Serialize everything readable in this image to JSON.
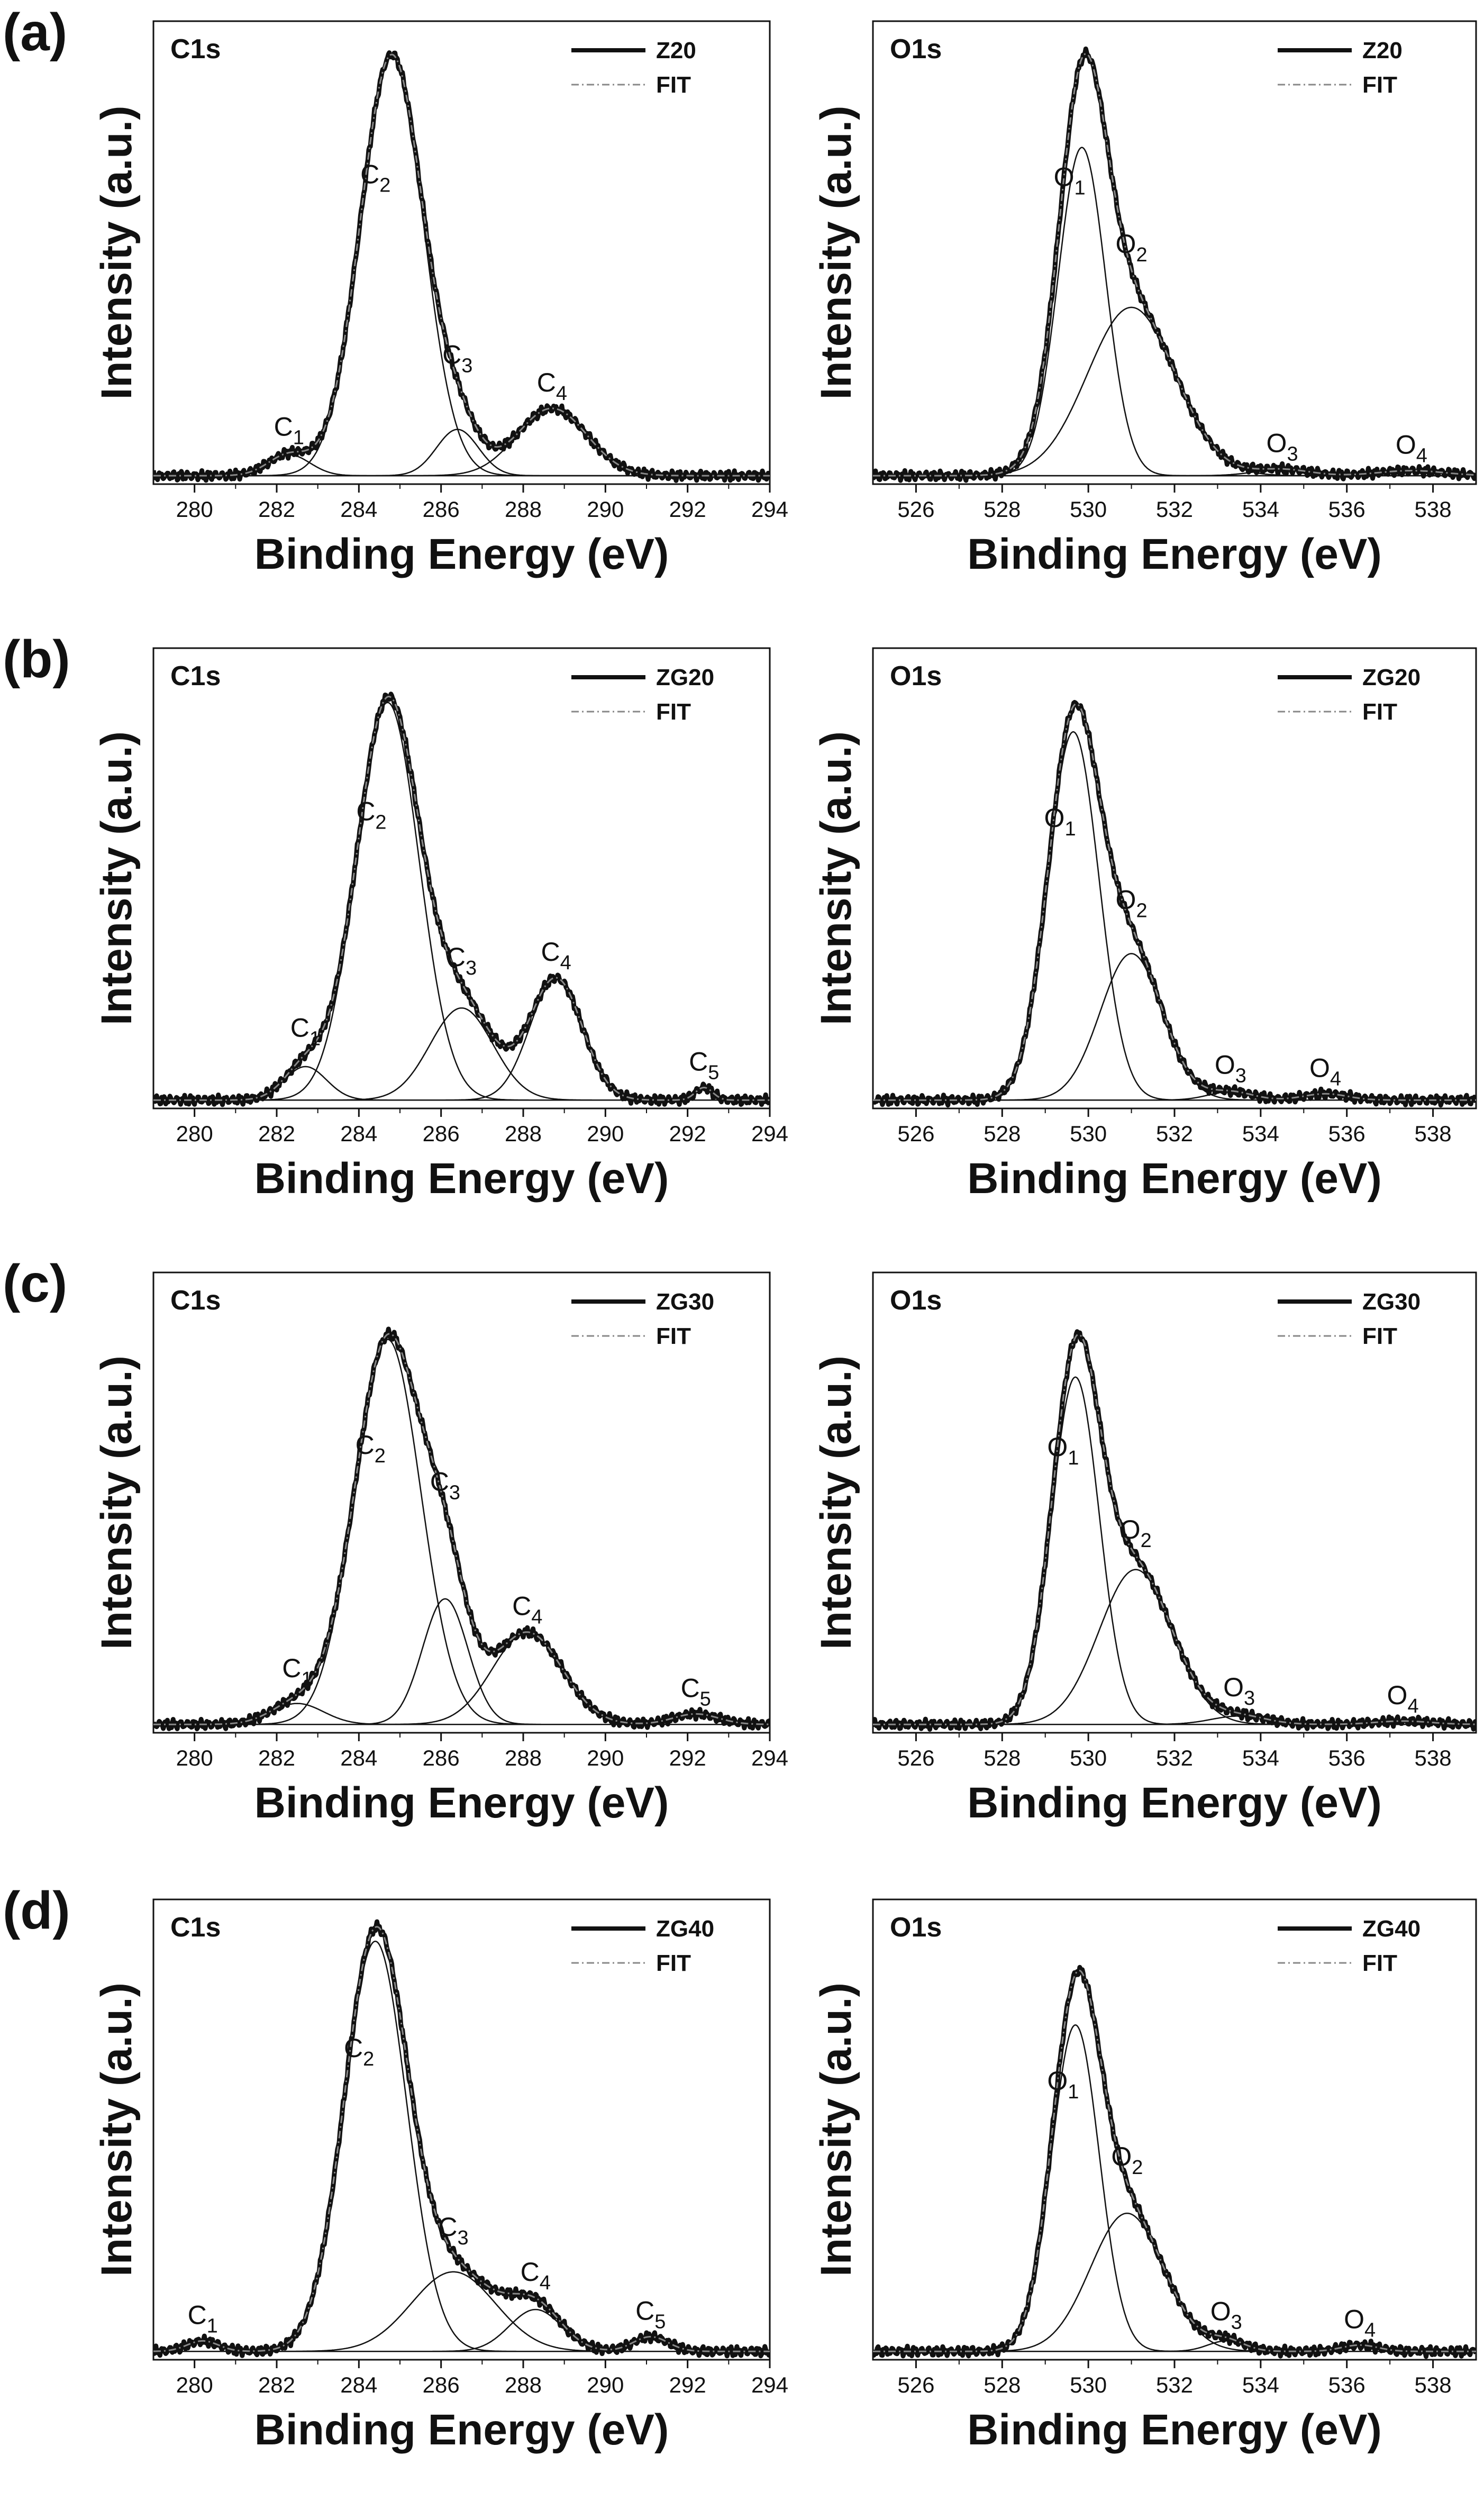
{
  "colors": {
    "data": "#111111",
    "fit": "#888888",
    "component": "#111111",
    "axis": "#111111"
  },
  "chart_data": [
    {
      "type": "line",
      "panel": "(a)",
      "title": "C1s",
      "xlabel": "Binding Energy (eV)",
      "ylabel": "Intensity (a.u.)",
      "xlim": [
        279,
        294
      ],
      "ylim": [
        0,
        1.1
      ],
      "xticks": [
        "280",
        "282",
        "284",
        "286",
        "288",
        "290",
        "292",
        "294"
      ],
      "legend": [
        "Z20",
        "FIT"
      ],
      "legend_position": "top-right",
      "components": [
        {
          "name": "C1",
          "label_main": "C",
          "label_sub": "1",
          "center": 282.3,
          "fwhm": 1.2,
          "height": 0.05
        },
        {
          "name": "C2",
          "label_main": "C",
          "label_sub": "2",
          "center": 284.8,
          "fwhm": 1.8,
          "height": 1.0
        },
        {
          "name": "C3",
          "label_main": "C",
          "label_sub": "3",
          "center": 286.4,
          "fwhm": 1.2,
          "height": 0.11
        },
        {
          "name": "C4",
          "label_main": "C",
          "label_sub": "4",
          "center": 288.7,
          "fwhm": 2.0,
          "height": 0.16
        }
      ]
    },
    {
      "type": "line",
      "panel": "(a)",
      "title": "O1s",
      "xlabel": "Binding Energy (eV)",
      "ylabel": "Intensity (a.u.)",
      "xlim": [
        525,
        539
      ],
      "ylim": [
        0,
        1.1
      ],
      "xticks": [
        "526",
        "528",
        "530",
        "532",
        "534",
        "536",
        "538"
      ],
      "legend": [
        "Z20",
        "FIT"
      ],
      "legend_position": "top-right",
      "components": [
        {
          "name": "O1",
          "label_main": "O",
          "label_sub": "1",
          "center": 529.85,
          "fwhm": 1.3,
          "height": 0.78
        },
        {
          "name": "O2",
          "label_main": "O",
          "label_sub": "2",
          "center": 531.0,
          "fwhm": 2.4,
          "height": 0.4
        },
        {
          "name": "O3",
          "label_main": "O",
          "label_sub": "3",
          "center": 534.5,
          "fwhm": 1.5,
          "height": 0.015
        },
        {
          "name": "O4",
          "label_main": "O",
          "label_sub": "4",
          "center": 537.5,
          "fwhm": 1.8,
          "height": 0.012
        }
      ]
    },
    {
      "type": "line",
      "panel": "(b)",
      "title": "C1s",
      "xlabel": "Binding Energy (eV)",
      "ylabel": "Intensity (a.u.)",
      "xlim": [
        279,
        294
      ],
      "ylim": [
        0,
        1.1
      ],
      "xticks": [
        "280",
        "282",
        "284",
        "286",
        "288",
        "290",
        "292",
        "294"
      ],
      "legend": [
        "ZG20",
        "FIT"
      ],
      "legend_position": "top-right",
      "components": [
        {
          "name": "C1",
          "label_main": "C",
          "label_sub": "1",
          "center": 282.7,
          "fwhm": 1.2,
          "height": 0.08
        },
        {
          "name": "C2",
          "label_main": "C",
          "label_sub": "2",
          "center": 284.7,
          "fwhm": 1.8,
          "height": 0.95
        },
        {
          "name": "C3",
          "label_main": "C",
          "label_sub": "3",
          "center": 286.5,
          "fwhm": 1.8,
          "height": 0.22
        },
        {
          "name": "C4",
          "label_main": "C",
          "label_sub": "4",
          "center": 288.8,
          "fwhm": 1.5,
          "height": 0.29
        },
        {
          "name": "C5",
          "label_main": "C",
          "label_sub": "5",
          "center": 292.4,
          "fwhm": 0.5,
          "height": 0.03
        }
      ]
    },
    {
      "type": "line",
      "panel": "(b)",
      "title": "O1s",
      "xlabel": "Binding Energy (eV)",
      "ylabel": "Intensity (a.u.)",
      "xlim": [
        525,
        539
      ],
      "ylim": [
        0,
        1.1
      ],
      "xticks": [
        "526",
        "528",
        "530",
        "532",
        "534",
        "536",
        "538"
      ],
      "legend": [
        "ZG20",
        "FIT"
      ],
      "legend_position": "top-right",
      "components": [
        {
          "name": "O1",
          "label_main": "O",
          "label_sub": "1",
          "center": 529.65,
          "fwhm": 1.4,
          "height": 0.88
        },
        {
          "name": "O2",
          "label_main": "O",
          "label_sub": "2",
          "center": 531.0,
          "fwhm": 1.7,
          "height": 0.35
        },
        {
          "name": "O3",
          "label_main": "O",
          "label_sub": "3",
          "center": 533.3,
          "fwhm": 1.2,
          "height": 0.02
        },
        {
          "name": "O4",
          "label_main": "O",
          "label_sub": "4",
          "center": 535.5,
          "fwhm": 1.2,
          "height": 0.015
        }
      ]
    },
    {
      "type": "line",
      "panel": "(c)",
      "title": "C1s",
      "xlabel": "Binding Energy (eV)",
      "ylabel": "Intensity (a.u.)",
      "xlim": [
        279,
        294
      ],
      "ylim": [
        0,
        1.1
      ],
      "xticks": [
        "280",
        "282",
        "284",
        "286",
        "288",
        "290",
        "292",
        "294"
      ],
      "legend": [
        "ZG30",
        "FIT"
      ],
      "legend_position": "top-right",
      "components": [
        {
          "name": "C1",
          "label_main": "C",
          "label_sub": "1",
          "center": 282.5,
          "fwhm": 1.5,
          "height": 0.05
        },
        {
          "name": "C2",
          "label_main": "C",
          "label_sub": "2",
          "center": 284.7,
          "fwhm": 1.9,
          "height": 0.92
        },
        {
          "name": "C3",
          "label_main": "C",
          "label_sub": "3",
          "center": 286.1,
          "fwhm": 1.3,
          "height": 0.3
        },
        {
          "name": "C4",
          "label_main": "C",
          "label_sub": "4",
          "center": 288.1,
          "fwhm": 2.0,
          "height": 0.22
        },
        {
          "name": "C5",
          "label_main": "C",
          "label_sub": "5",
          "center": 292.2,
          "fwhm": 1.3,
          "height": 0.025
        }
      ]
    },
    {
      "type": "line",
      "panel": "(c)",
      "title": "O1s",
      "xlabel": "Binding Energy (eV)",
      "ylabel": "Intensity (a.u.)",
      "xlim": [
        525,
        539
      ],
      "ylim": [
        0,
        1.1
      ],
      "xticks": [
        "526",
        "528",
        "530",
        "532",
        "534",
        "536",
        "538"
      ],
      "legend": [
        "ZG30",
        "FIT"
      ],
      "legend_position": "top-right",
      "components": [
        {
          "name": "O1",
          "label_main": "O",
          "label_sub": "1",
          "center": 529.7,
          "fwhm": 1.3,
          "height": 0.83
        },
        {
          "name": "O2",
          "label_main": "O",
          "label_sub": "2",
          "center": 531.1,
          "fwhm": 2.0,
          "height": 0.37
        },
        {
          "name": "O3",
          "label_main": "O",
          "label_sub": "3",
          "center": 533.5,
          "fwhm": 1.5,
          "height": 0.02
        },
        {
          "name": "O4",
          "label_main": "O",
          "label_sub": "4",
          "center": 537.3,
          "fwhm": 1.5,
          "height": 0.008
        }
      ]
    },
    {
      "type": "line",
      "panel": "(d)",
      "title": "C1s",
      "xlabel": "Binding Energy (eV)",
      "ylabel": "Intensity (a.u.)",
      "xlim": [
        279,
        294
      ],
      "ylim": [
        0,
        1.1
      ],
      "xticks": [
        "280",
        "282",
        "284",
        "286",
        "288",
        "290",
        "292",
        "294"
      ],
      "legend": [
        "ZG40",
        "FIT"
      ],
      "legend_position": "top-right",
      "components": [
        {
          "name": "C1",
          "label_main": "C",
          "label_sub": "1",
          "center": 280.2,
          "fwhm": 0.9,
          "height": 0.025
        },
        {
          "name": "C2",
          "label_main": "C",
          "label_sub": "2",
          "center": 284.4,
          "fwhm": 1.8,
          "height": 0.98
        },
        {
          "name": "C3",
          "label_main": "C",
          "label_sub": "3",
          "center": 286.3,
          "fwhm": 2.4,
          "height": 0.19
        },
        {
          "name": "C4",
          "label_main": "C",
          "label_sub": "4",
          "center": 288.3,
          "fwhm": 1.5,
          "height": 0.1
        },
        {
          "name": "C5",
          "label_main": "C",
          "label_sub": "5",
          "center": 291.1,
          "fwhm": 1.0,
          "height": 0.035
        }
      ]
    },
    {
      "type": "line",
      "panel": "(d)",
      "title": "O1s",
      "xlabel": "Binding Energy (eV)",
      "ylabel": "Intensity (a.u.)",
      "xlim": [
        525,
        539
      ],
      "ylim": [
        0,
        1.1
      ],
      "xticks": [
        "526",
        "528",
        "530",
        "532",
        "534",
        "536",
        "538"
      ],
      "legend": [
        "ZG40",
        "FIT"
      ],
      "legend_position": "top-right",
      "components": [
        {
          "name": "O1",
          "label_main": "O",
          "label_sub": "1",
          "center": 529.7,
          "fwhm": 1.3,
          "height": 0.78
        },
        {
          "name": "O2",
          "label_main": "O",
          "label_sub": "2",
          "center": 530.9,
          "fwhm": 2.0,
          "height": 0.33
        },
        {
          "name": "O3",
          "label_main": "O",
          "label_sub": "3",
          "center": 533.2,
          "fwhm": 1.0,
          "height": 0.025
        },
        {
          "name": "O4",
          "label_main": "O",
          "label_sub": "4",
          "center": 536.3,
          "fwhm": 1.0,
          "height": 0.015
        }
      ]
    }
  ]
}
